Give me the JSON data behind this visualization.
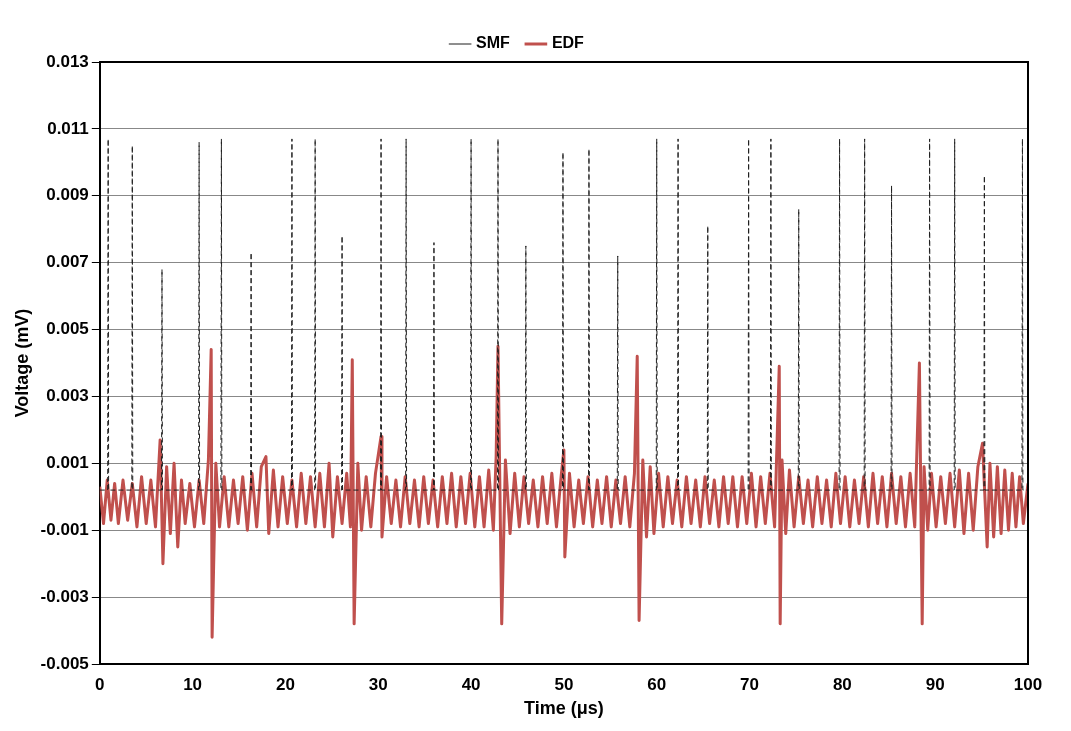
{
  "chart_data": {
    "type": "line",
    "xlabel": "Time (μs)",
    "ylabel": "Voltage (mV)",
    "xlim": [
      0,
      100
    ],
    "xticks": [
      0,
      10,
      20,
      30,
      40,
      50,
      60,
      70,
      80,
      90,
      100
    ],
    "ylim": [
      -0.005,
      0.013
    ],
    "yticks": [
      -0.005,
      -0.003,
      -0.001,
      0.001,
      0.003,
      0.005,
      0.007,
      0.009,
      0.011,
      0.013
    ],
    "grid": "y",
    "legend": "top",
    "marker": "none",
    "series": [
      {
        "name": "SMF",
        "color": "#1f1f1f",
        "line_style": "dashed",
        "x": [
          0,
          0.85,
          0.9,
          0.95,
          3.45,
          3.5,
          3.55,
          6.65,
          6.7,
          6.75,
          10.65,
          10.7,
          10.75,
          13.05,
          13.1,
          13.15,
          16.25,
          16.3,
          16.35,
          20.65,
          20.7,
          20.75,
          23.15,
          23.2,
          23.25,
          26.05,
          26.1,
          26.15,
          30.25,
          30.3,
          30.35,
          32.95,
          33.0,
          33.05,
          35.95,
          36.0,
          36.05,
          39.95,
          40.0,
          40.05,
          42.85,
          42.9,
          42.95,
          45.85,
          45.9,
          45.95,
          49.85,
          49.9,
          49.95,
          52.65,
          52.7,
          52.75,
          55.75,
          55.8,
          55.85,
          59.95,
          60.0,
          60.05,
          62.25,
          62.3,
          62.35,
          65.45,
          65.5,
          65.55,
          69.85,
          69.9,
          69.95,
          72.25,
          72.3,
          72.35,
          75.25,
          75.3,
          75.35,
          79.65,
          79.7,
          79.75,
          82.35,
          82.4,
          82.45,
          85.25,
          85.3,
          85.35,
          89.35,
          89.4,
          89.45,
          92.05,
          92.1,
          92.15,
          95.25,
          95.3,
          95.35,
          99.35,
          99.4,
          99.45,
          100
        ],
        "values": [
          0.0002,
          0.0002,
          0.0107,
          0.0002,
          0.0002,
          0.0105,
          0.0002,
          0.0002,
          0.0068,
          0.0002,
          0.0002,
          0.0106,
          0.0002,
          0.0002,
          0.0107,
          0.0002,
          0.0002,
          0.0073,
          0.0002,
          0.0002,
          0.0107,
          0.0002,
          0.0002,
          0.0107,
          0.0002,
          0.0002,
          0.0078,
          0.0002,
          0.0002,
          0.0107,
          0.0002,
          0.0002,
          0.0107,
          0.0002,
          0.0002,
          0.0076,
          0.0002,
          0.0002,
          0.0107,
          0.0002,
          0.0002,
          0.0107,
          0.0002,
          0.0002,
          0.0075,
          0.0002,
          0.0002,
          0.0103,
          0.0002,
          0.0002,
          0.0104,
          0.0002,
          0.0002,
          0.0072,
          0.0002,
          0.0002,
          0.0107,
          0.0002,
          0.0002,
          0.0107,
          0.0002,
          0.0002,
          0.0081,
          0.0002,
          0.0002,
          0.0107,
          0.0002,
          0.0002,
          0.0107,
          0.0002,
          0.0002,
          0.0086,
          0.0002,
          0.0002,
          0.0107,
          0.0002,
          0.0002,
          0.0107,
          0.0002,
          0.0002,
          0.0093,
          0.0002,
          0.0002,
          0.0107,
          0.0002,
          0.0002,
          0.0107,
          0.0002,
          0.0002,
          0.0096,
          0.0002,
          0.0002,
          0.0107,
          0.0002,
          0.0002
        ]
      },
      {
        "name": "EDF",
        "color": "#c0504d",
        "line_style": "solid",
        "x": [
          0,
          0.4,
          0.8,
          1.2,
          1.6,
          2.0,
          2.5,
          3.0,
          3.5,
          4.0,
          4.5,
          5.0,
          5.5,
          6.0,
          6.5,
          6.8,
          7.2,
          7.6,
          8.0,
          8.4,
          8.8,
          9.2,
          9.7,
          10.2,
          10.7,
          11.2,
          11.7,
          12.0,
          12.1,
          12.5,
          12.9,
          13.4,
          13.9,
          14.4,
          14.9,
          15.4,
          15.9,
          16.4,
          16.9,
          17.4,
          17.9,
          18.2,
          18.7,
          19.2,
          19.7,
          20.2,
          20.7,
          21.2,
          21.7,
          22.2,
          22.7,
          23.2,
          23.7,
          24.2,
          24.7,
          25.1,
          25.6,
          26.1,
          26.6,
          27.0,
          27.2,
          27.4,
          27.8,
          28.2,
          28.7,
          29.2,
          29.7,
          30.3,
          30.4,
          30.9,
          31.4,
          31.9,
          32.4,
          32.9,
          33.4,
          33.9,
          34.4,
          34.9,
          35.4,
          35.9,
          36.4,
          36.9,
          37.4,
          37.9,
          38.4,
          38.9,
          39.4,
          39.9,
          40.4,
          40.9,
          41.4,
          41.9,
          42.4,
          42.7,
          42.9,
          43.3,
          43.7,
          44.2,
          44.7,
          45.2,
          45.7,
          46.2,
          46.7,
          47.2,
          47.7,
          48.2,
          48.7,
          49.2,
          49.7,
          50.0,
          50.1,
          50.6,
          51.1,
          51.6,
          52.1,
          52.6,
          53.1,
          53.6,
          54.1,
          54.6,
          55.1,
          55.6,
          56.1,
          56.6,
          57.1,
          57.6,
          57.9,
          58.1,
          58.5,
          58.9,
          59.3,
          59.7,
          60.2,
          60.7,
          61.2,
          61.7,
          62.2,
          62.7,
          63.2,
          63.7,
          64.2,
          64.7,
          65.2,
          65.7,
          66.2,
          66.7,
          67.2,
          67.7,
          68.2,
          68.7,
          69.2,
          69.7,
          70.2,
          70.7,
          71.2,
          71.7,
          72.2,
          72.7,
          73.2,
          73.3,
          73.5,
          73.9,
          74.3,
          74.8,
          75.3,
          75.8,
          76.3,
          76.8,
          77.3,
          77.8,
          78.3,
          78.8,
          79.3,
          79.8,
          80.3,
          80.8,
          81.3,
          81.8,
          82.3,
          82.8,
          83.3,
          83.8,
          84.3,
          84.8,
          85.3,
          85.8,
          86.3,
          86.8,
          87.3,
          87.8,
          88.3,
          88.6,
          88.8,
          89.2,
          89.6,
          90.1,
          90.6,
          91.1,
          91.6,
          92.1,
          92.6,
          93.1,
          93.6,
          94.1,
          94.6,
          95.1,
          95.6,
          95.9,
          96.3,
          96.7,
          97.1,
          97.5,
          97.9,
          98.3,
          98.7,
          99.1,
          99.5,
          100
        ],
        "values": [
          0.0003,
          -0.0008,
          0.0005,
          -0.0007,
          0.0004,
          -0.0008,
          0.0005,
          -0.0007,
          0.0004,
          -0.0009,
          0.0006,
          -0.0008,
          0.0005,
          -0.0009,
          0.0017,
          -0.002,
          0.0009,
          -0.0011,
          0.001,
          -0.0015,
          0.0005,
          -0.0008,
          0.0004,
          -0.0009,
          0.0005,
          -0.0008,
          0.0011,
          0.0044,
          -0.0042,
          0.001,
          -0.0009,
          0.0006,
          -0.0009,
          0.0005,
          -0.0008,
          0.0006,
          -0.001,
          0.0007,
          -0.0009,
          0.0009,
          0.0012,
          -0.0011,
          0.0008,
          -0.0009,
          0.0006,
          -0.0008,
          0.0005,
          -0.0009,
          0.0007,
          -0.0008,
          0.0006,
          -0.0009,
          0.0007,
          -0.0009,
          0.001,
          -0.0012,
          0.0006,
          -0.0008,
          0.0007,
          -0.0009,
          0.0041,
          -0.0038,
          0.001,
          -0.001,
          0.0006,
          -0.0009,
          0.0007,
          0.0018,
          -0.0012,
          0.0006,
          -0.0008,
          0.0005,
          -0.0009,
          0.0006,
          -0.0008,
          0.0005,
          -0.0009,
          0.0006,
          -0.0008,
          0.0005,
          -0.0009,
          0.0006,
          -0.0008,
          0.0007,
          -0.0009,
          0.0006,
          -0.0008,
          0.0007,
          -0.0009,
          0.0006,
          -0.0009,
          0.0008,
          -0.001,
          0.0012,
          0.0045,
          -0.0038,
          0.0011,
          -0.0011,
          0.0007,
          -0.0009,
          0.0006,
          -0.0008,
          0.0005,
          -0.0009,
          0.0006,
          -0.0008,
          0.0007,
          -0.0009,
          0.0006,
          0.0014,
          -0.0018,
          0.0007,
          -0.0009,
          0.0005,
          -0.0008,
          0.0006,
          -0.0009,
          0.0005,
          -0.0008,
          0.0006,
          -0.0009,
          0.0005,
          -0.0008,
          0.0006,
          -0.0009,
          0.0007,
          0.0042,
          -0.0037,
          0.0011,
          -0.0012,
          0.0009,
          -0.0011,
          0.0007,
          -0.0009,
          0.0006,
          -0.0008,
          0.0005,
          -0.0009,
          0.0006,
          -0.0008,
          0.0005,
          -0.0009,
          0.0006,
          -0.0008,
          0.0005,
          -0.0009,
          0.0006,
          -0.0008,
          0.0006,
          -0.0009,
          0.0006,
          -0.0008,
          0.0007,
          -0.0009,
          0.0006,
          -0.0008,
          0.0007,
          -0.0009,
          0.0039,
          -0.0038,
          0.0011,
          -0.0011,
          0.0008,
          -0.0009,
          0.0006,
          -0.0008,
          0.0005,
          -0.0009,
          0.0006,
          -0.0008,
          0.0005,
          -0.0009,
          0.0007,
          -0.0008,
          0.0006,
          -0.0009,
          0.0005,
          -0.0008,
          0.0006,
          -0.0009,
          0.0007,
          -0.0008,
          0.0006,
          -0.0009,
          0.0007,
          -0.0008,
          0.0006,
          -0.0009,
          0.0007,
          -0.0009,
          0.004,
          -0.0038,
          0.0009,
          -0.001,
          0.0007,
          -0.0009,
          0.0006,
          -0.0008,
          0.0007,
          -0.0009,
          0.0008,
          -0.0011,
          0.0007,
          -0.001,
          0.0009,
          0.0016,
          -0.0015,
          0.001,
          -0.0012,
          0.0009,
          -0.0011,
          0.0008,
          -0.001,
          0.0007,
          -0.0009,
          0.0006,
          -0.0008,
          0.0004
        ]
      }
    ]
  }
}
